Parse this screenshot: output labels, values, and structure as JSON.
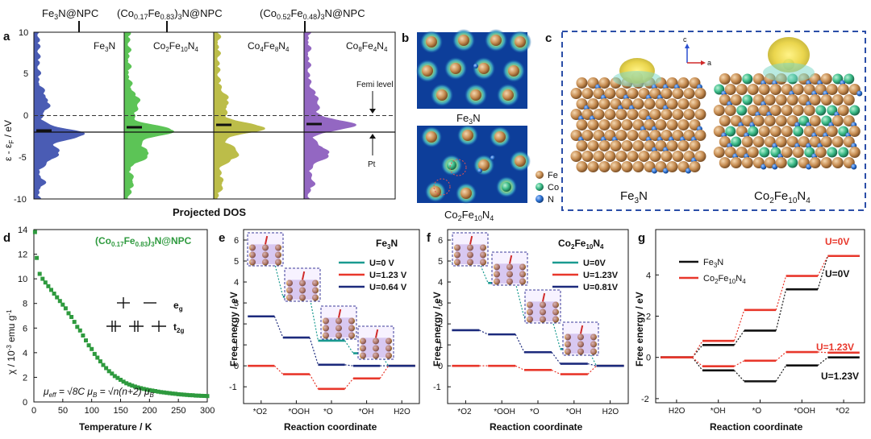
{
  "panel_letters": {
    "a": "a",
    "b": "b",
    "c": "c",
    "d": "d",
    "e": "e",
    "f": "f",
    "g": "g"
  },
  "panel_a": {
    "header_left": "Fe3N@NPC",
    "header_mid": "(Co0.17Fe0.83)3N@NPC",
    "header_right": "(Co0.52Fe0.48)3N@NPC",
    "subpanels": [
      "Fe3N",
      "Co2Fe10N4",
      "Co4Fe8N4",
      "Co8Fe4N4"
    ],
    "y_axis_label": "ε - εF / eV",
    "x_axis_label": "Projected DOS",
    "y_ticks": [
      "10",
      "5",
      "0",
      "-5",
      "-10"
    ],
    "fermi_label": "Femi level",
    "pt_label": "Pt",
    "colors": [
      "#3b4fae",
      "#4fc048",
      "#b7b83a",
      "#8a5bbd"
    ]
  },
  "panel_b": {
    "top_label": "Fe3N",
    "bottom_label": "Co2Fe10N4"
  },
  "panel_c": {
    "legend": [
      "Fe",
      "Co",
      "N"
    ],
    "legend_colors": [
      "#c9955a",
      "#3dbf8a",
      "#2a6fd0"
    ],
    "axis_c": "c",
    "axis_a": "a",
    "left_label": "Fe3N",
    "right_label": "Co2Fe10N4"
  },
  "panel_d": {
    "title": "(Co0.17Fe0.83)3N@NPC",
    "y_label": "χ / 10⁻³ emu g⁻¹",
    "x_label": "Temperature / K",
    "x_ticks": [
      "0",
      "50",
      "100",
      "150",
      "200",
      "250",
      "300"
    ],
    "y_ticks": [
      "0",
      "2",
      "4",
      "6",
      "8",
      "10",
      "12",
      "14"
    ],
    "eg_label": "eg",
    "t2g_label": "t2g",
    "formula": "μeff = √8C μB = √n(n+2) μB"
  },
  "chart_data": [
    {
      "type": "scatter",
      "title": "(Co0.17Fe0.83)3N@NPC",
      "xlabel": "Temperature / K",
      "ylabel": "χ / 10⁻³ emu g⁻¹",
      "xlim": [
        0,
        300
      ],
      "ylim": [
        0,
        14
      ],
      "x": [
        2,
        5,
        10,
        15,
        20,
        25,
        30,
        35,
        40,
        45,
        50,
        55,
        60,
        65,
        70,
        75,
        80,
        85,
        90,
        95,
        100,
        105,
        110,
        115,
        120,
        125,
        130,
        135,
        140,
        145,
        150,
        155,
        160,
        165,
        170,
        175,
        180,
        185,
        190,
        195,
        200,
        205,
        210,
        215,
        220,
        225,
        230,
        235,
        240,
        245,
        250,
        255,
        260,
        265,
        270,
        275,
        280,
        285,
        290,
        295,
        300
      ],
      "y": [
        13.8,
        11.7,
        10.4,
        10.0,
        9.7,
        9.4,
        9.1,
        8.8,
        8.5,
        8.2,
        7.9,
        7.6,
        7.2,
        6.9,
        6.5,
        6.1,
        5.8,
        5.4,
        5.0,
        4.6,
        4.3,
        3.9,
        3.6,
        3.3,
        3.0,
        2.75,
        2.5,
        2.3,
        2.1,
        1.95,
        1.8,
        1.65,
        1.52,
        1.42,
        1.33,
        1.25,
        1.18,
        1.12,
        1.06,
        1.01,
        0.96,
        0.92,
        0.88,
        0.84,
        0.8,
        0.77,
        0.74,
        0.71,
        0.68,
        0.66,
        0.63,
        0.61,
        0.59,
        0.57,
        0.55,
        0.54,
        0.52,
        0.51,
        0.5,
        0.49,
        0.48
      ]
    },
    {
      "type": "line",
      "title": "Fe3N",
      "xlabel": "Reaction coordinate",
      "ylabel": "Free energy / eV",
      "categories": [
        "*O2",
        "*OOH",
        "*O",
        "*OH",
        "H2O"
      ],
      "ylim": [
        -1.8,
        6.5
      ],
      "series": [
        {
          "name": "U=0 V",
          "color": "#1a9a90",
          "values": [
            4.92,
            3.3,
            1.2,
            0.6,
            0
          ]
        },
        {
          "name": "U=1.23 V",
          "color": "#e8372b",
          "values": [
            0,
            -0.4,
            -1.1,
            -0.6,
            0
          ]
        },
        {
          "name": "U=0.64 V",
          "color": "#1c2a7c",
          "values": [
            2.36,
            1.35,
            0.05,
            0.0,
            0
          ]
        }
      ]
    },
    {
      "type": "line",
      "title": "Co2Fe10N4",
      "xlabel": "Reaction coordinate",
      "ylabel": "Free energy / eV",
      "categories": [
        "*O2",
        "*OOH",
        "*O",
        "*OH",
        "H2O"
      ],
      "ylim": [
        -1.8,
        6.5
      ],
      "series": [
        {
          "name": "U=0V",
          "color": "#1a9a90",
          "values": [
            4.92,
            3.95,
            2.3,
            0.8,
            0
          ]
        },
        {
          "name": "U=1.23V",
          "color": "#e8372b",
          "values": [
            0,
            0.0,
            -0.2,
            -0.4,
            0
          ]
        },
        {
          "name": "U=0.81V",
          "color": "#1c2a7c",
          "values": [
            1.7,
            1.5,
            0.65,
            0.1,
            0
          ]
        }
      ]
    },
    {
      "type": "line",
      "title": "",
      "xlabel": "Reaction coordinate",
      "ylabel": "Free energy / eV",
      "categories": [
        "H2O",
        "*OH",
        "*O",
        "*OOH",
        "*O2"
      ],
      "ylim": [
        -2.2,
        6.2
      ],
      "series": [
        {
          "name": "Fe3N U=0V",
          "color": "#111111",
          "values": [
            0,
            0.6,
            1.3,
            3.3,
            4.92
          ]
        },
        {
          "name": "Co2Fe10N4 U=0V",
          "color": "#e8372b",
          "values": [
            0,
            0.8,
            2.3,
            3.95,
            4.92
          ]
        },
        {
          "name": "Fe3N U=1.23V",
          "color": "#111111",
          "values": [
            0,
            -0.63,
            -1.16,
            -0.39,
            -0.0
          ]
        },
        {
          "name": "Co2Fe10N4 U=1.23V",
          "color": "#e8372b",
          "values": [
            0,
            -0.43,
            -0.16,
            0.26,
            0.23
          ]
        }
      ]
    }
  ],
  "panel_e": {
    "title": "Fe3N",
    "legend": [
      "U=0 V",
      "U=1.23 V",
      "U=0.64 V"
    ],
    "y_ticks": [
      "6",
      "5",
      "4",
      "3",
      "2",
      "1",
      "0",
      "-1"
    ],
    "x_ticks": [
      "*O2",
      "*OOH",
      "*O",
      "*OH",
      "H2O"
    ],
    "y_label": "Free energy / eV",
    "x_label": "Reaction coordinate"
  },
  "panel_f": {
    "title": "Co2Fe10N4",
    "legend": [
      "U=0V",
      "U=1.23V",
      "U=0.81V"
    ],
    "y_ticks": [
      "6",
      "5",
      "4",
      "3",
      "2",
      "1",
      "0",
      "-1"
    ],
    "x_ticks": [
      "*O2",
      "*OOH",
      "*O",
      "*OH",
      "H2O"
    ],
    "y_label": "Free energy / eV",
    "x_label": "Reaction coordinate"
  },
  "panel_g": {
    "legend": [
      "Fe3N",
      "Co2Fe10N4"
    ],
    "u0_red": "U=0V",
    "u0_black": "U=0V",
    "u123_red": "U=1.23V",
    "u123_black": "U=1.23V",
    "y_ticks": [
      "4",
      "2",
      "0",
      "-2"
    ],
    "x_ticks": [
      "H2O",
      "*OH",
      "*O",
      "*OOH",
      "*O2"
    ],
    "y_label": "Free energy / eV",
    "x_label": "Reaction coordinate"
  }
}
